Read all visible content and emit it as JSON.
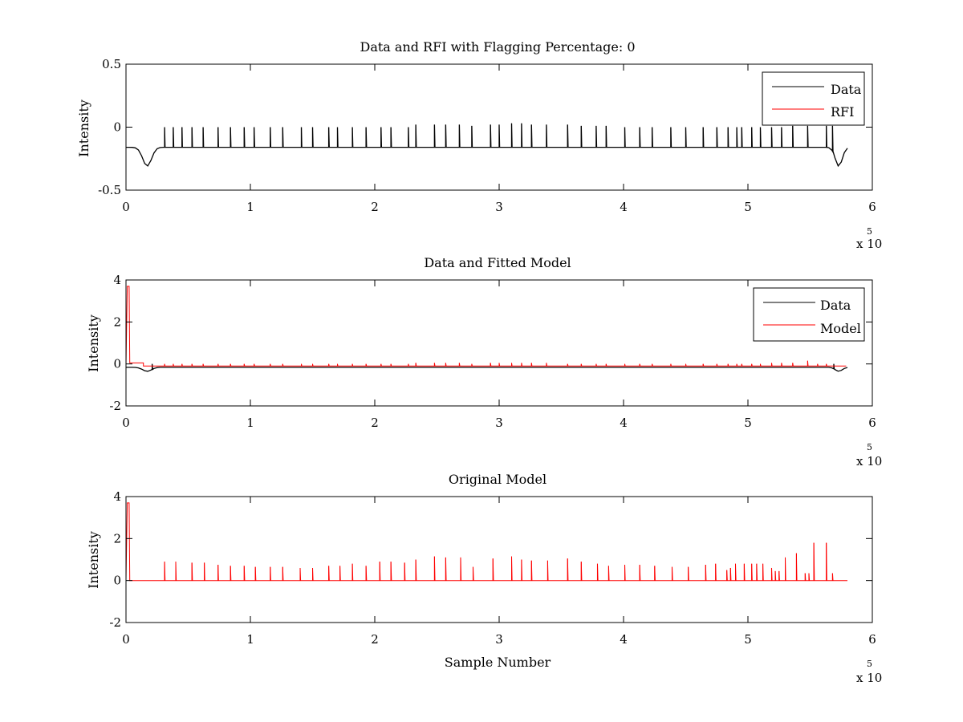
{
  "figure": {
    "background": "#ffffff"
  },
  "colors": {
    "data": "#000000",
    "rfi": "#ff0000",
    "axis": "#000000"
  },
  "chart_data": [
    {
      "type": "line",
      "title": "Data and RFI with Flagging Percentage: 0",
      "xlabel": "",
      "ylabel": "Intensity",
      "xlim": [
        0,
        600000
      ],
      "ylim": [
        -0.5,
        0.5
      ],
      "xticks": [
        0,
        100000,
        200000,
        300000,
        400000,
        500000,
        600000
      ],
      "xtick_labels": [
        "0",
        "1",
        "2",
        "3",
        "4",
        "5",
        "6"
      ],
      "yticks": [
        -0.5,
        0,
        0.5
      ],
      "ytick_labels": [
        "-0.5",
        "0",
        "0.5"
      ],
      "x_multiplier": {
        "base": "x 10",
        "exponent": "5"
      },
      "grid": false,
      "legend": {
        "position": "top-right",
        "entries": [
          "Data",
          "RFI"
        ]
      },
      "series": [
        {
          "name": "Data",
          "color": "#000000",
          "baseline": -0.16,
          "x_end": 580000,
          "dips": [
            [
              17000,
              -0.31,
              5000
            ],
            [
              573000,
              -0.31,
              4000
            ]
          ],
          "spikes": [
            [
              31000,
              0.0
            ],
            [
              38000,
              0.0
            ],
            [
              45000,
              0.0
            ],
            [
              53000,
              0.0
            ],
            [
              62000,
              0.0
            ],
            [
              74000,
              0.0
            ],
            [
              84000,
              0.0
            ],
            [
              95000,
              0.0
            ],
            [
              103000,
              0.0
            ],
            [
              116000,
              0.0
            ],
            [
              126000,
              0.0
            ],
            [
              141000,
              0.0
            ],
            [
              150000,
              0.0
            ],
            [
              163000,
              0.0
            ],
            [
              170000,
              0.0
            ],
            [
              182000,
              0.0
            ],
            [
              193000,
              0.0
            ],
            [
              205000,
              0.0
            ],
            [
              213000,
              0.0
            ],
            [
              227000,
              0.0
            ],
            [
              233000,
              0.02
            ],
            [
              248000,
              0.02
            ],
            [
              257000,
              0.02
            ],
            [
              268000,
              0.02
            ],
            [
              278000,
              0.01
            ],
            [
              293000,
              0.02
            ],
            [
              300000,
              0.02
            ],
            [
              310000,
              0.03
            ],
            [
              318000,
              0.03
            ],
            [
              326000,
              0.02
            ],
            [
              338000,
              0.02
            ],
            [
              355000,
              0.02
            ],
            [
              366000,
              0.01
            ],
            [
              378000,
              0.01
            ],
            [
              386000,
              0.01
            ],
            [
              401000,
              0.0
            ],
            [
              413000,
              0.0
            ],
            [
              423000,
              0.0
            ],
            [
              438000,
              0.0
            ],
            [
              450000,
              0.0
            ],
            [
              464000,
              0.0
            ],
            [
              475000,
              0.0
            ],
            [
              484000,
              0.0
            ],
            [
              491000,
              0.0
            ],
            [
              495000,
              0.0
            ],
            [
              503000,
              0.0
            ],
            [
              510000,
              0.0
            ],
            [
              519000,
              0.0
            ],
            [
              527000,
              0.0
            ],
            [
              536000,
              0.01
            ],
            [
              548000,
              0.01
            ],
            [
              563000,
              0.01
            ],
            [
              568000,
              0.01
            ]
          ]
        },
        {
          "name": "RFI",
          "color": "#ff0000",
          "points": []
        }
      ]
    },
    {
      "type": "line",
      "title": "Data and Fitted Model",
      "xlabel": "",
      "ylabel": "Intensity",
      "xlim": [
        0,
        600000
      ],
      "ylim": [
        -2,
        4
      ],
      "xticks": [
        0,
        100000,
        200000,
        300000,
        400000,
        500000,
        600000
      ],
      "xtick_labels": [
        "0",
        "1",
        "2",
        "3",
        "4",
        "5",
        "6"
      ],
      "yticks": [
        -2,
        0,
        2,
        4
      ],
      "ytick_labels": [
        "-2",
        "0",
        "2",
        "4"
      ],
      "x_multiplier": {
        "base": "x 10",
        "exponent": "5"
      },
      "grid": false,
      "legend": {
        "position": "top-right",
        "entries": [
          "Data",
          "Model"
        ]
      },
      "series": [
        {
          "name": "Data",
          "color": "#000000",
          "baseline": -0.16,
          "x_end": 580000,
          "dips": [
            [
              17000,
              -0.35,
              5000
            ],
            [
              573000,
              -0.35,
              4000
            ]
          ],
          "spikes": [
            [
              21000,
              0.0
            ],
            [
              569000,
              0.0
            ]
          ]
        },
        {
          "name": "Model",
          "color": "#ff0000",
          "baseline": -0.1,
          "x_end": 580000,
          "start_plateau": {
            "x_start": 1000,
            "x_end": 14000,
            "y": 0.05,
            "peak": 3.7
          },
          "spikes": [
            [
              31000,
              0.0
            ],
            [
              38000,
              0.0
            ],
            [
              45000,
              0.0
            ],
            [
              53000,
              0.0
            ],
            [
              62000,
              0.0
            ],
            [
              74000,
              0.0
            ],
            [
              84000,
              0.0
            ],
            [
              95000,
              0.0
            ],
            [
              103000,
              0.0
            ],
            [
              116000,
              0.0
            ],
            [
              126000,
              0.0
            ],
            [
              141000,
              0.0
            ],
            [
              150000,
              0.0
            ],
            [
              163000,
              0.0
            ],
            [
              170000,
              0.0
            ],
            [
              182000,
              0.0
            ],
            [
              193000,
              0.0
            ],
            [
              205000,
              0.0
            ],
            [
              213000,
              0.0
            ],
            [
              227000,
              0.0
            ],
            [
              233000,
              0.05
            ],
            [
              248000,
              0.05
            ],
            [
              257000,
              0.05
            ],
            [
              268000,
              0.05
            ],
            [
              278000,
              0.0
            ],
            [
              293000,
              0.05
            ],
            [
              300000,
              0.05
            ],
            [
              310000,
              0.05
            ],
            [
              318000,
              0.05
            ],
            [
              326000,
              0.05
            ],
            [
              338000,
              0.05
            ],
            [
              355000,
              0.0
            ],
            [
              366000,
              0.0
            ],
            [
              378000,
              0.0
            ],
            [
              386000,
              0.0
            ],
            [
              401000,
              0.0
            ],
            [
              413000,
              0.0
            ],
            [
              423000,
              0.0
            ],
            [
              438000,
              0.0
            ],
            [
              450000,
              0.0
            ],
            [
              464000,
              0.0
            ],
            [
              475000,
              0.0
            ],
            [
              484000,
              0.0
            ],
            [
              491000,
              0.0
            ],
            [
              495000,
              0.0
            ],
            [
              503000,
              0.0
            ],
            [
              510000,
              0.0
            ],
            [
              519000,
              0.05
            ],
            [
              527000,
              0.05
            ],
            [
              536000,
              0.05
            ],
            [
              548000,
              0.15
            ],
            [
              556000,
              0.0
            ],
            [
              563000,
              0.0
            ]
          ]
        }
      ]
    },
    {
      "type": "line",
      "title": "Original Model",
      "xlabel": "Sample Number",
      "ylabel": "Intensity",
      "xlim": [
        0,
        600000
      ],
      "ylim": [
        -2,
        4
      ],
      "xticks": [
        0,
        100000,
        200000,
        300000,
        400000,
        500000,
        600000
      ],
      "xtick_labels": [
        "0",
        "1",
        "2",
        "3",
        "4",
        "5",
        "6"
      ],
      "yticks": [
        -2,
        0,
        2,
        4
      ],
      "ytick_labels": [
        "-2",
        "0",
        "2",
        "4"
      ],
      "x_multiplier": {
        "base": "x 10",
        "exponent": "5"
      },
      "grid": false,
      "legend": null,
      "series": [
        {
          "name": "",
          "color": "#ff0000",
          "baseline": 0,
          "x_end": 580000,
          "start_plateau": {
            "x_start": 1000,
            "x_end": 2500,
            "y": 0,
            "peak": 3.7
          },
          "spikes": [
            [
              31000,
              0.9
            ],
            [
              40000,
              0.9
            ],
            [
              53000,
              0.85
            ],
            [
              63000,
              0.85
            ],
            [
              74000,
              0.75
            ],
            [
              84000,
              0.7
            ],
            [
              95000,
              0.7
            ],
            [
              104000,
              0.65
            ],
            [
              116000,
              0.65
            ],
            [
              126000,
              0.65
            ],
            [
              140000,
              0.6
            ],
            [
              150000,
              0.6
            ],
            [
              163000,
              0.7
            ],
            [
              172000,
              0.7
            ],
            [
              182000,
              0.8
            ],
            [
              193000,
              0.7
            ],
            [
              204000,
              0.9
            ],
            [
              213000,
              0.9
            ],
            [
              224000,
              0.85
            ],
            [
              233000,
              1.0
            ],
            [
              248000,
              1.15
            ],
            [
              257000,
              1.1
            ],
            [
              269000,
              1.1
            ],
            [
              279000,
              0.65
            ],
            [
              295000,
              1.05
            ],
            [
              310000,
              1.15
            ],
            [
              318000,
              1.0
            ],
            [
              326000,
              0.95
            ],
            [
              339000,
              0.95
            ],
            [
              355000,
              1.05
            ],
            [
              366000,
              0.9
            ],
            [
              379000,
              0.8
            ],
            [
              388000,
              0.7
            ],
            [
              401000,
              0.75
            ],
            [
              413000,
              0.75
            ],
            [
              425000,
              0.7
            ],
            [
              439000,
              0.65
            ],
            [
              452000,
              0.65
            ],
            [
              466000,
              0.75
            ],
            [
              474000,
              0.8
            ],
            [
              483000,
              0.5
            ],
            [
              486000,
              0.6
            ],
            [
              490000,
              0.8
            ],
            [
              497000,
              0.8
            ],
            [
              503000,
              0.8
            ],
            [
              507000,
              0.8
            ],
            [
              512000,
              0.8
            ],
            [
              519000,
              0.6
            ],
            [
              522000,
              0.45
            ],
            [
              525000,
              0.45
            ],
            [
              530000,
              1.1
            ],
            [
              539000,
              1.3
            ],
            [
              546000,
              0.35
            ],
            [
              549000,
              0.35
            ],
            [
              553000,
              1.8
            ],
            [
              563000,
              1.8
            ],
            [
              568000,
              0.35
            ]
          ]
        }
      ]
    }
  ]
}
